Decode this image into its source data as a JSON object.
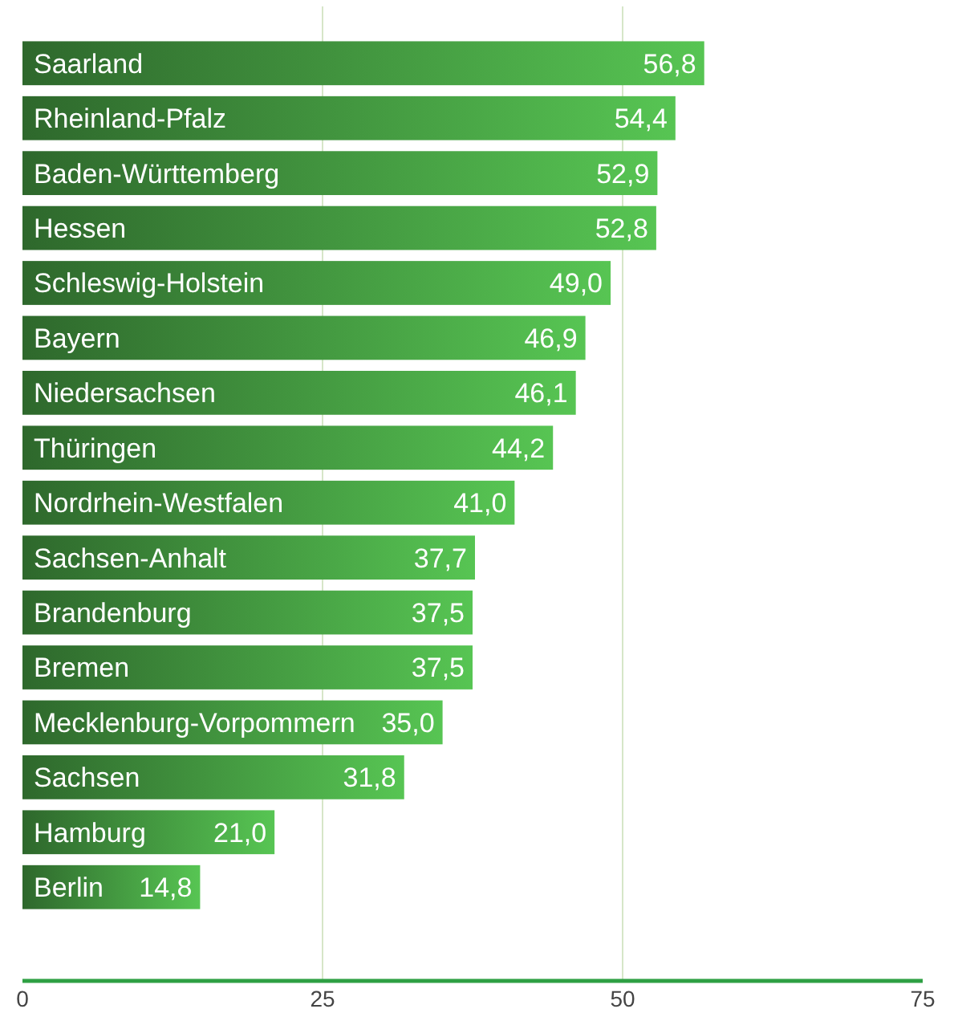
{
  "chart_data": {
    "type": "bar",
    "orientation": "horizontal",
    "categories": [
      "Saarland",
      "Rheinland-Pfalz",
      "Baden-Württemberg",
      "Hessen",
      "Schleswig-Holstein",
      "Bayern",
      "Niedersachsen",
      "Thüringen",
      "Nordrhein-Westfalen",
      "Sachsen-Anhalt",
      "Brandenburg",
      "Bremen",
      "Mecklenburg-Vorpommern",
      "Sachsen",
      "Hamburg",
      "Berlin"
    ],
    "values": [
      56.8,
      54.4,
      52.9,
      52.8,
      49.0,
      46.9,
      46.1,
      44.2,
      41.0,
      37.7,
      37.5,
      37.5,
      35.0,
      31.8,
      21.0,
      14.8
    ],
    "value_labels": [
      "56,8",
      "54,4",
      "52,9",
      "52,8",
      "49,0",
      "46,9",
      "46,1",
      "44,2",
      "41,0",
      "37,7",
      "37,5",
      "37,5",
      "35,0",
      "31,8",
      "21,0",
      "14,8"
    ],
    "color": "#3f8f3c",
    "xlim": [
      0,
      75
    ],
    "xticks": [
      0,
      25,
      50,
      75
    ],
    "grid": "x"
  }
}
